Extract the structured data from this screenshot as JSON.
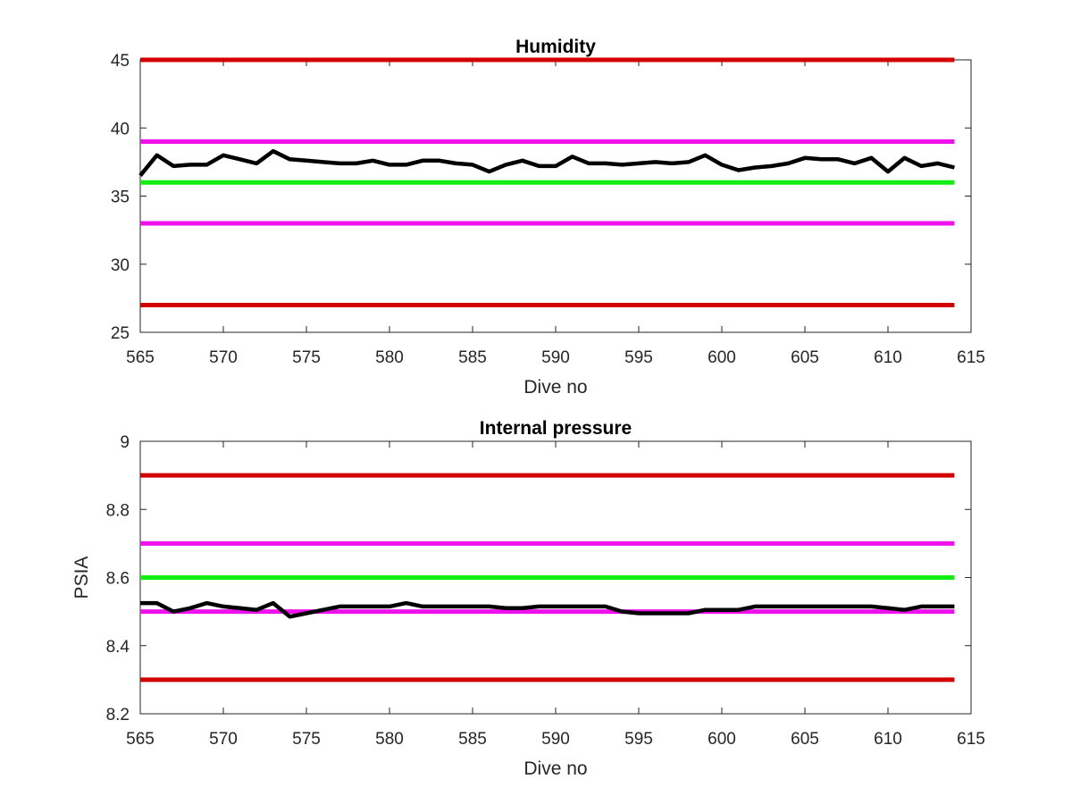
{
  "chart_data": [
    {
      "type": "line",
      "title": "Humidity",
      "xlabel": "Dive no",
      "ylabel": "",
      "xlim": [
        565,
        615
      ],
      "ylim": [
        25,
        45
      ],
      "xticks": [
        "565",
        "570",
        "575",
        "580",
        "585",
        "590",
        "595",
        "600",
        "605",
        "610",
        "615"
      ],
      "yticks": [
        "25",
        "30",
        "35",
        "40",
        "45"
      ],
      "grid": false,
      "legend": "none",
      "hlines": [
        {
          "y": 45,
          "color": "#d40000"
        },
        {
          "y": 39,
          "color": "#ee11ee"
        },
        {
          "y": 36,
          "color": "#11ee11"
        },
        {
          "y": 33,
          "color": "#ee11ee"
        },
        {
          "y": 27,
          "color": "#d40000"
        }
      ],
      "series": [
        {
          "color": "#000000",
          "x": [
            565,
            566,
            567,
            568,
            569,
            570,
            571,
            572,
            573,
            574,
            575,
            576,
            577,
            578,
            579,
            580,
            581,
            582,
            583,
            584,
            585,
            586,
            587,
            588,
            589,
            590,
            591,
            592,
            593,
            594,
            595,
            596,
            597,
            598,
            599,
            600,
            601,
            602,
            603,
            604,
            605,
            606,
            607,
            608,
            609,
            610,
            611,
            612,
            613,
            614
          ],
          "y": [
            36.5,
            38.0,
            37.2,
            37.3,
            37.3,
            38.0,
            37.7,
            37.4,
            38.3,
            37.7,
            37.6,
            37.5,
            37.4,
            37.4,
            37.6,
            37.3,
            37.3,
            37.6,
            37.6,
            37.4,
            37.3,
            36.8,
            37.3,
            37.6,
            37.2,
            37.2,
            37.9,
            37.4,
            37.4,
            37.3,
            37.4,
            37.5,
            37.4,
            37.5,
            38.0,
            37.3,
            36.9,
            37.1,
            37.2,
            37.4,
            37.8,
            37.7,
            37.7,
            37.4,
            37.8,
            36.8,
            37.8,
            37.2,
            37.4,
            37.1
          ]
        }
      ]
    },
    {
      "type": "line",
      "title": "Internal pressure",
      "xlabel": "Dive no",
      "ylabel": "PSIA",
      "xlim": [
        565,
        615
      ],
      "ylim": [
        8.2,
        9.0
      ],
      "xticks": [
        "565",
        "570",
        "575",
        "580",
        "585",
        "590",
        "595",
        "600",
        "605",
        "610",
        "615"
      ],
      "yticks": [
        "8.2",
        "8.4",
        "8.6",
        "8.8",
        "9"
      ],
      "grid": false,
      "legend": "none",
      "hlines": [
        {
          "y": 8.9,
          "color": "#d40000"
        },
        {
          "y": 8.7,
          "color": "#ee11ee"
        },
        {
          "y": 8.6,
          "color": "#11ee11"
        },
        {
          "y": 8.5,
          "color": "#ee11ee"
        },
        {
          "y": 8.3,
          "color": "#d40000"
        }
      ],
      "series": [
        {
          "color": "#000000",
          "x": [
            565,
            566,
            567,
            568,
            569,
            570,
            571,
            572,
            573,
            574,
            575,
            576,
            577,
            578,
            579,
            580,
            581,
            582,
            583,
            584,
            585,
            586,
            587,
            588,
            589,
            590,
            591,
            592,
            593,
            594,
            595,
            596,
            597,
            598,
            599,
            600,
            601,
            602,
            603,
            604,
            605,
            606,
            607,
            608,
            609,
            610,
            611,
            612,
            613,
            614
          ],
          "y": [
            8.525,
            8.525,
            8.5,
            8.51,
            8.525,
            8.515,
            8.51,
            8.505,
            8.525,
            8.485,
            8.495,
            8.505,
            8.515,
            8.515,
            8.515,
            8.515,
            8.525,
            8.515,
            8.515,
            8.515,
            8.515,
            8.515,
            8.51,
            8.51,
            8.515,
            8.515,
            8.515,
            8.515,
            8.515,
            8.5,
            8.495,
            8.495,
            8.495,
            8.495,
            8.505,
            8.505,
            8.505,
            8.515,
            8.515,
            8.515,
            8.515,
            8.515,
            8.515,
            8.515,
            8.515,
            8.51,
            8.505,
            8.515,
            8.515,
            8.515
          ]
        }
      ]
    }
  ]
}
